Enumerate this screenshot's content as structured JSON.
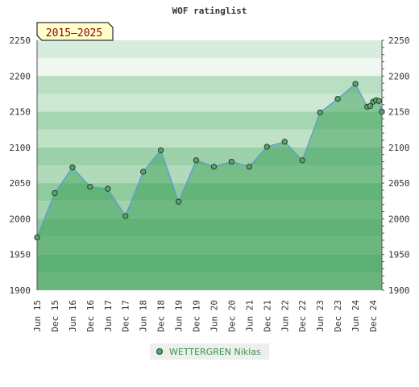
{
  "chart_data": {
    "type": "area",
    "title": "WOF ratinglist",
    "period_label": "2015–2025",
    "ylim": [
      1900,
      2250
    ],
    "yticks": [
      1900,
      1950,
      2000,
      2050,
      2100,
      2150,
      2200,
      2250
    ],
    "xticks": [
      "Jun 15",
      "Dec 15",
      "Jun 16",
      "Dec 16",
      "Jun 17",
      "Dec 17",
      "Jun 18",
      "Dec 18",
      "Jun 19",
      "Dec 19",
      "Jun 20",
      "Dec 20",
      "Jun 21",
      "Dec 21",
      "Jun 22",
      "Dec 22",
      "Jun 23",
      "Dec 23",
      "Jun 24",
      "Dec 24"
    ],
    "grid": true,
    "legend_position": "bottom",
    "series": [
      {
        "name": "WETTERGREN Niklas",
        "points": [
          [
            "Jun 15",
            1974
          ],
          [
            "Dec 15",
            2036
          ],
          [
            "Jun 16",
            2072
          ],
          [
            "Dec 16",
            2045
          ],
          [
            "Jun 17",
            2042
          ],
          [
            "Dec 17",
            2004
          ],
          [
            "Jun 18",
            2066
          ],
          [
            "Dec 18",
            2096
          ],
          [
            "Jun 19",
            2024
          ],
          [
            "Dec 19",
            2082
          ],
          [
            "Jun 20",
            2073
          ],
          [
            "Dec 20",
            2080
          ],
          [
            "Jun 21",
            2073
          ],
          [
            "Dec 21",
            2101
          ],
          [
            "Jun 22",
            2108
          ],
          [
            "Dec 22",
            2082
          ],
          [
            "Jun 23",
            2149
          ],
          [
            "Dec 23",
            2168
          ],
          [
            "Jun 24",
            2189
          ],
          [
            "Oct 24",
            2157
          ],
          [
            "Nov 24",
            2158
          ],
          [
            "Dec 24",
            2164
          ],
          [
            "Jan 25",
            2166
          ],
          [
            "Feb 25",
            2165
          ],
          [
            "Mar 25",
            2150
          ]
        ]
      }
    ]
  },
  "colors": {
    "line": "#5a9bd5",
    "marker": "#5aa06a",
    "marker_stroke": "#1e3a24",
    "label_fill": "#ffffcc",
    "label_text": "#8b0000",
    "legend_text": "#2e9a4a"
  }
}
